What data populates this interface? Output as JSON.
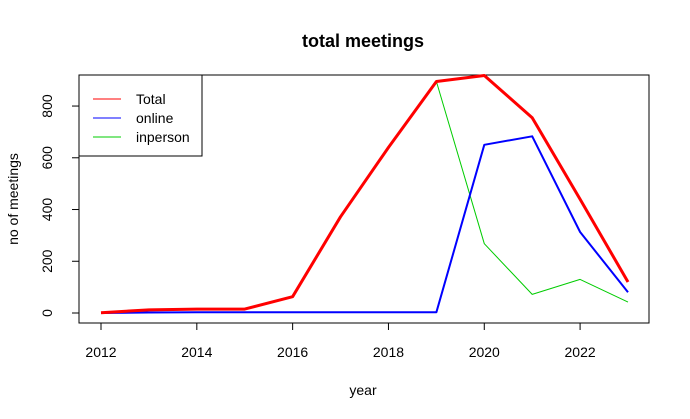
{
  "chart_data": {
    "type": "line",
    "title": "total meetings",
    "xlabel": "year",
    "ylabel": "no of meetings",
    "xlim": [
      2012,
      2023
    ],
    "ylim": [
      0,
      920
    ],
    "x_ticks": [
      2012,
      2014,
      2016,
      2018,
      2020,
      2022
    ],
    "y_ticks": [
      0,
      200,
      400,
      600,
      800
    ],
    "x": [
      2012,
      2013,
      2014,
      2015,
      2016,
      2017,
      2018,
      2019,
      2020,
      2021,
      2022,
      2023
    ],
    "series": [
      {
        "name": "Total",
        "color": "#FF0000",
        "values": [
          1,
          12,
          15,
          15,
          63,
          372,
          640,
          895,
          918,
          755,
          440,
          120
        ]
      },
      {
        "name": "online",
        "color": "#0000FF",
        "values": [
          0,
          2,
          3,
          3,
          3,
          3,
          3,
          3,
          650,
          683,
          313,
          80
        ]
      },
      {
        "name": "inperson",
        "color": "#00CC00",
        "values": [
          1,
          12,
          15,
          15,
          63,
          372,
          640,
          895,
          268,
          72,
          130,
          42
        ]
      }
    ],
    "grid": false,
    "legend": "top-left"
  }
}
